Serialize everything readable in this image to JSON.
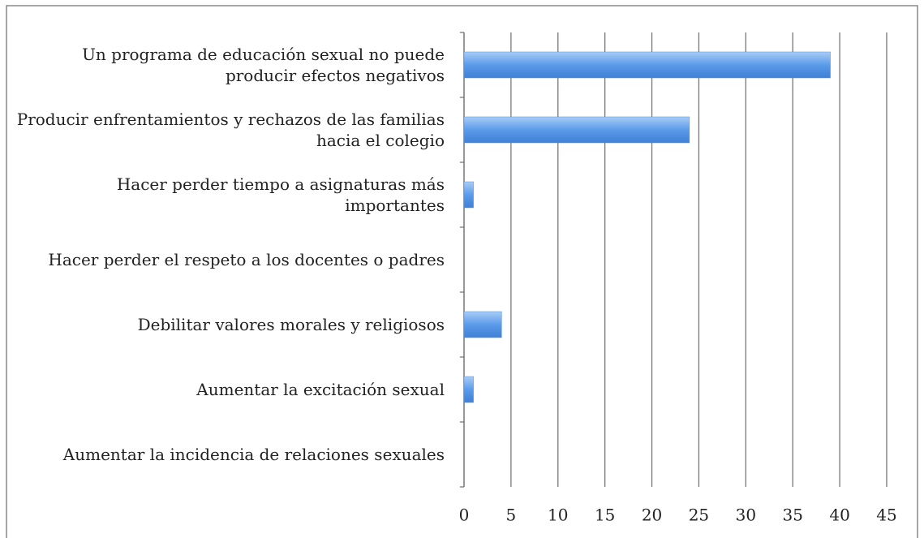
{
  "chart_data": {
    "type": "barh",
    "categories": [
      "Un programa de educación sexual no puede producir efectos negativos",
      "Producir enfrentamientos y rechazos de las familias hacia el colegio",
      "Hacer perder tiempo a asignaturas más importantes",
      "Hacer perder el respeto a los docentes o padres",
      "Debilitar valores morales y religiosos",
      "Aumentar la excitación sexual",
      "Aumentar la incidencia de relaciones sexuales"
    ],
    "values": [
      39,
      24,
      1,
      0,
      4,
      1,
      0
    ],
    "color": "#4f8fe0",
    "xlim": [
      0,
      45
    ],
    "xticks": [
      0,
      5,
      10,
      15,
      20,
      25,
      30,
      35,
      40,
      45
    ],
    "grid": true
  }
}
